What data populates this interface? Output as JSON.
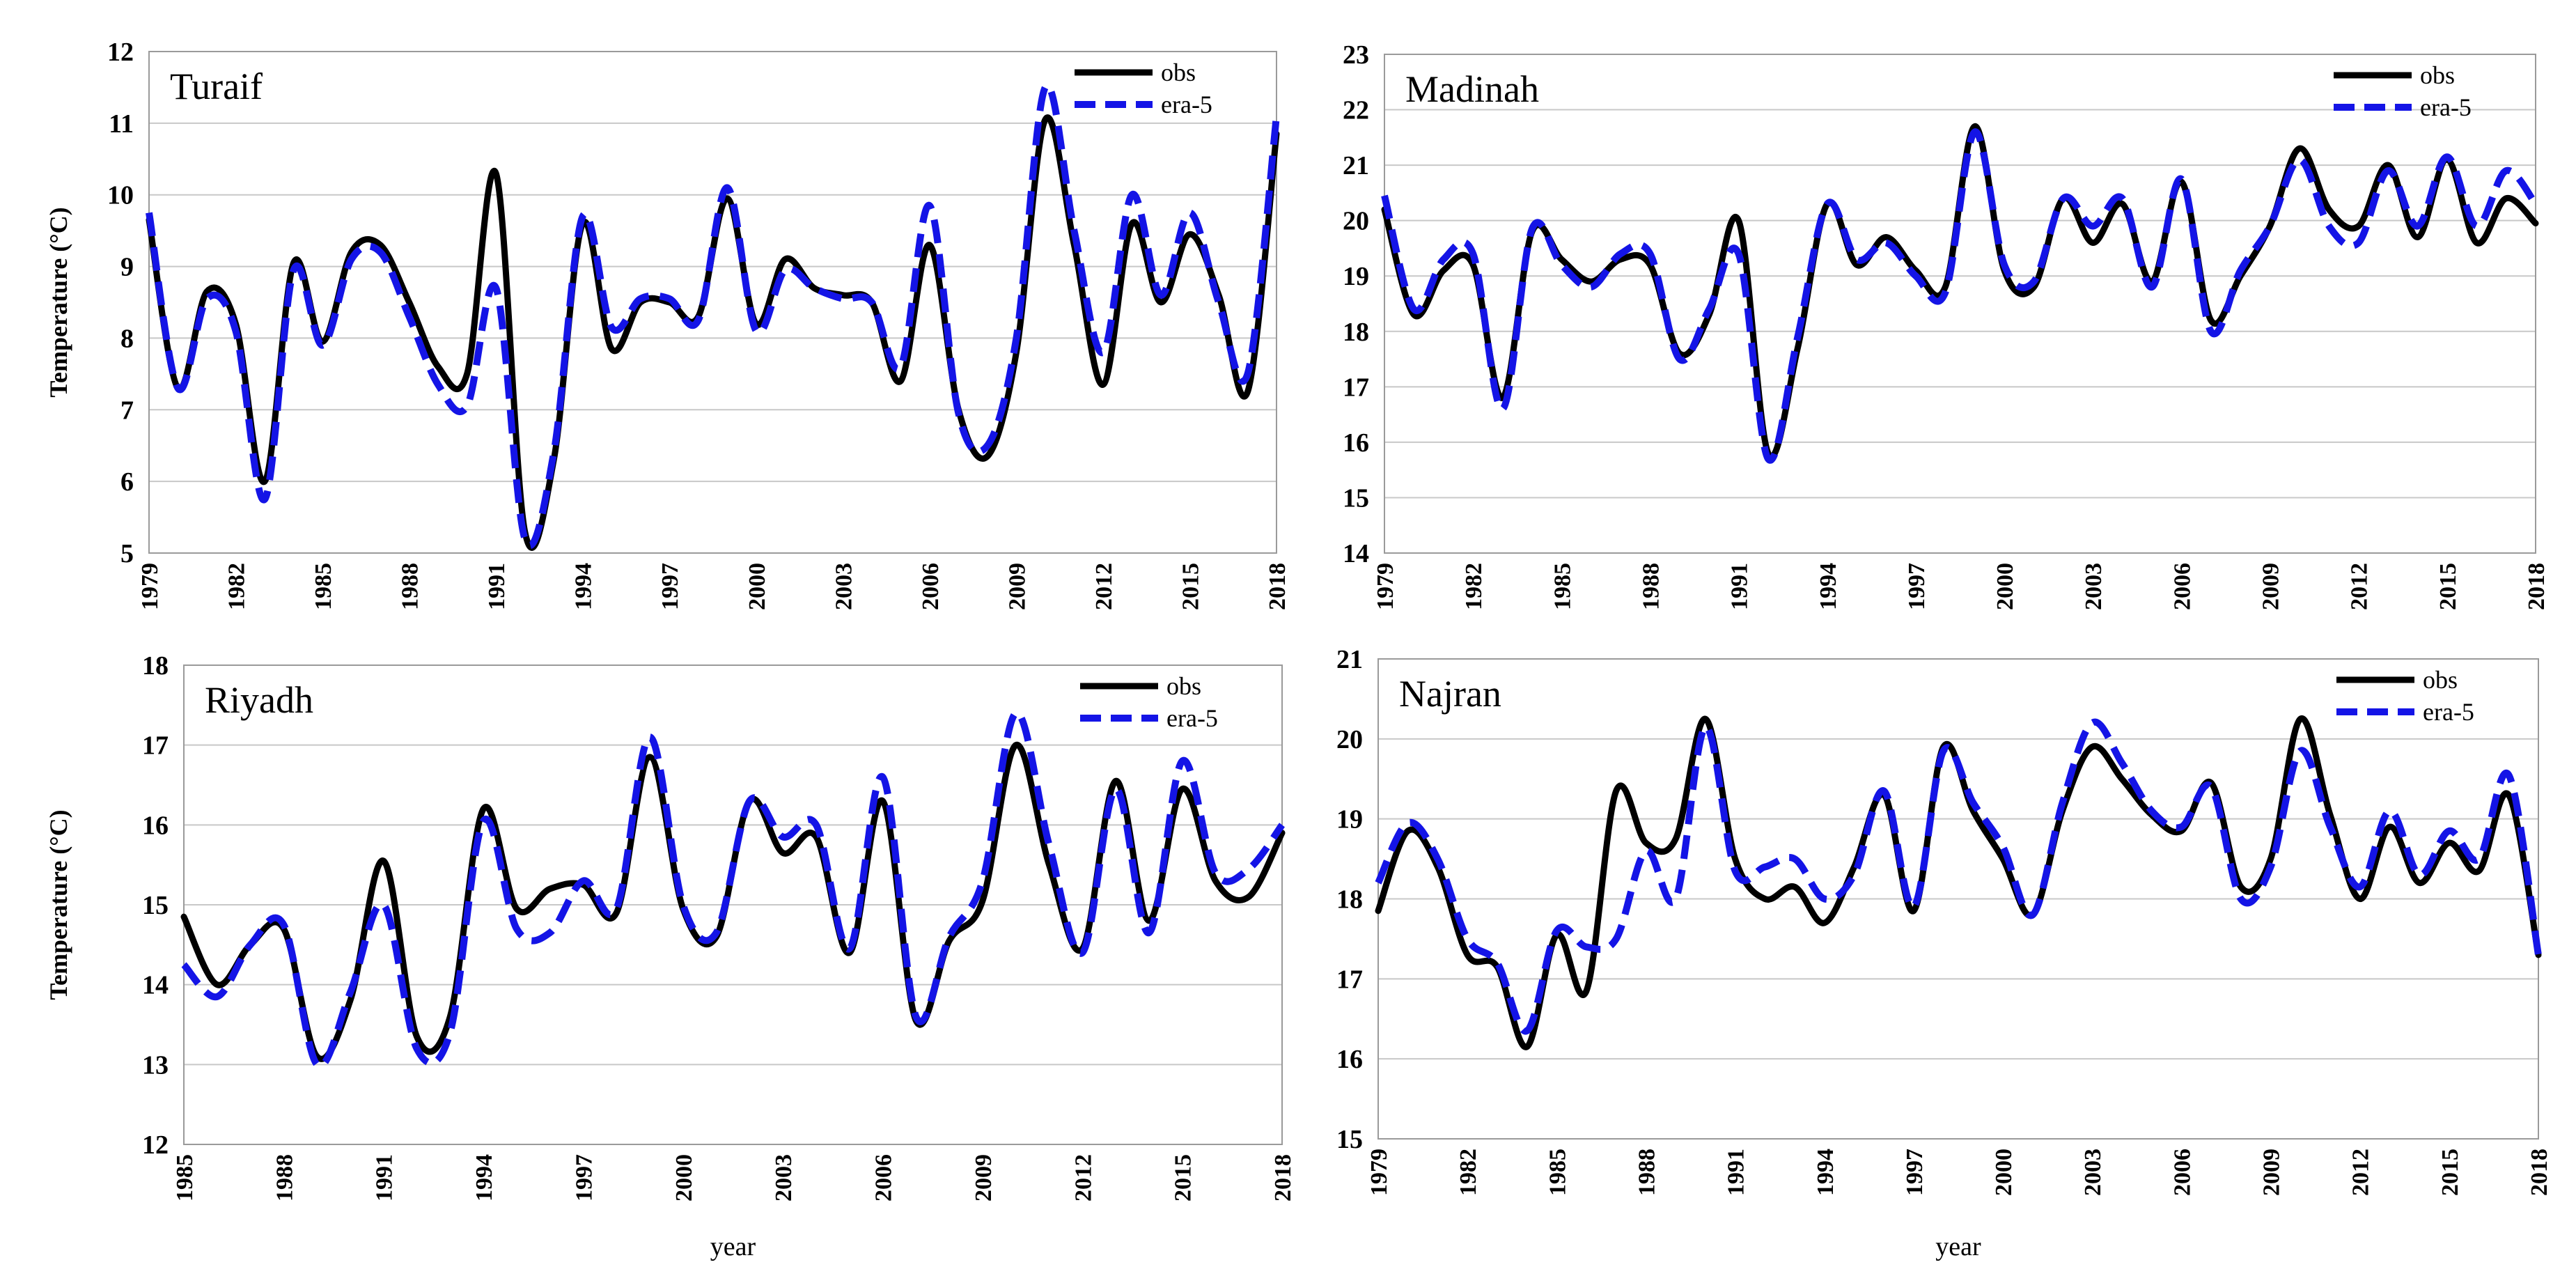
{
  "chart_data": [
    {
      "type": "line",
      "title": "Turaif",
      "xlabel": "",
      "ylabel": "Temperature (°C)",
      "ylim": [
        5,
        12
      ],
      "yticks": [
        5,
        6,
        7,
        8,
        9,
        10,
        11,
        12
      ],
      "xlim": [
        1979,
        2018
      ],
      "xticks": [
        "1979",
        "1982",
        "1985",
        "1988",
        "1991",
        "1994",
        "1997",
        "2000",
        "2003",
        "2006",
        "2009",
        "2012",
        "2015",
        "2018"
      ],
      "legend": [
        "obs",
        "era-5"
      ],
      "legend_position": "top-right",
      "x": [
        1979,
        1980,
        1981,
        1982,
        1983,
        1984,
        1985,
        1986,
        1987,
        1988,
        1989,
        1990,
        1991,
        1992,
        1993,
        1994,
        1995,
        1996,
        1997,
        1998,
        1999,
        2000,
        2001,
        2002,
        2003,
        2004,
        2005,
        2006,
        2007,
        2008,
        2009,
        2010,
        2011,
        2012,
        2013,
        2014,
        2015,
        2016,
        2017,
        2018
      ],
      "series": [
        {
          "name": "obs",
          "color": "#000000",
          "dashed": false,
          "values": [
            9.65,
            7.3,
            8.65,
            8.2,
            6.0,
            9.05,
            7.95,
            9.2,
            9.3,
            8.5,
            7.6,
            7.5,
            10.3,
            5.3,
            6.3,
            9.6,
            7.85,
            8.5,
            8.5,
            8.3,
            9.95,
            8.2,
            9.1,
            8.7,
            8.6,
            8.5,
            7.4,
            9.3,
            7.0,
            6.35,
            7.8,
            11.05,
            9.3,
            7.35,
            9.6,
            8.5,
            9.45,
            8.6,
            7.25,
            10.85
          ]
        },
        {
          "name": "era-5",
          "color": "#1414e6",
          "dashed": true,
          "values": [
            9.75,
            7.3,
            8.55,
            8.1,
            5.75,
            8.95,
            7.9,
            9.1,
            9.2,
            8.3,
            7.35,
            7.05,
            8.7,
            5.2,
            6.4,
            9.7,
            8.15,
            8.55,
            8.55,
            8.25,
            10.1,
            8.1,
            8.95,
            8.7,
            8.55,
            8.5,
            7.6,
            9.85,
            6.95,
            6.5,
            8.0,
            11.5,
            9.5,
            7.8,
            10.0,
            8.6,
            9.75,
            8.5,
            7.5,
            11.1
          ]
        }
      ]
    },
    {
      "type": "line",
      "title": "Madinah",
      "xlabel": "",
      "ylabel": "",
      "ylim": [
        14,
        23
      ],
      "yticks": [
        14,
        15,
        16,
        17,
        18,
        19,
        20,
        21,
        22,
        23
      ],
      "xlim": [
        1979,
        2018
      ],
      "xticks": [
        "1979",
        "1982",
        "1985",
        "1988",
        "1991",
        "1994",
        "1997",
        "2000",
        "2003",
        "2006",
        "2009",
        "2012",
        "2015",
        "2018"
      ],
      "legend": [
        "obs",
        "era-5"
      ],
      "legend_position": "top-right",
      "x": [
        1979,
        1980,
        1981,
        1982,
        1983,
        1984,
        1985,
        1986,
        1987,
        1988,
        1989,
        1990,
        1991,
        1992,
        1993,
        1994,
        1995,
        1996,
        1997,
        1998,
        1999,
        2000,
        2001,
        2002,
        2003,
        2004,
        2005,
        2006,
        2007,
        2008,
        2009,
        2010,
        2011,
        2012,
        2013,
        2014,
        2015,
        2016,
        2017,
        2018
      ],
      "series": [
        {
          "name": "obs",
          "color": "#000000",
          "dashed": false,
          "values": [
            20.2,
            18.3,
            19.1,
            19.2,
            16.8,
            19.8,
            19.3,
            18.9,
            19.3,
            19.2,
            17.6,
            18.3,
            20.0,
            15.8,
            17.7,
            20.3,
            19.2,
            19.7,
            19.1,
            18.8,
            21.7,
            19.1,
            18.8,
            20.4,
            19.6,
            20.3,
            18.9,
            20.7,
            18.2,
            19.0,
            19.9,
            21.3,
            20.2,
            19.9,
            21.0,
            19.7,
            21.1,
            19.6,
            20.4,
            19.95
          ]
        },
        {
          "name": "era-5",
          "color": "#1414e6",
          "dashed": true,
          "values": [
            20.45,
            18.4,
            19.3,
            19.4,
            16.6,
            19.85,
            19.2,
            18.8,
            19.4,
            19.4,
            17.5,
            18.4,
            19.4,
            15.7,
            17.9,
            20.3,
            19.3,
            19.6,
            19.0,
            18.7,
            21.6,
            19.2,
            18.9,
            20.4,
            19.9,
            20.4,
            18.8,
            20.75,
            18.0,
            19.1,
            19.9,
            21.1,
            19.9,
            19.6,
            20.9,
            19.9,
            21.15,
            19.9,
            20.9,
            20.3
          ]
        }
      ]
    },
    {
      "type": "line",
      "title": "Riyadh",
      "xlabel": "year",
      "ylabel": "Temperature (°C)",
      "ylim": [
        12,
        18
      ],
      "yticks": [
        12,
        13,
        14,
        15,
        16,
        17,
        18
      ],
      "xlim": [
        1985,
        2018
      ],
      "xticks": [
        "1985",
        "1988",
        "1991",
        "1994",
        "1997",
        "2000",
        "2003",
        "2006",
        "2009",
        "2012",
        "2015",
        "2018"
      ],
      "legend": [
        "obs",
        "era-5"
      ],
      "legend_position": "top-right",
      "x": [
        1985,
        1986,
        1987,
        1988,
        1989,
        1990,
        1991,
        1992,
        1993,
        1994,
        1995,
        1996,
        1997,
        1998,
        1999,
        2000,
        2001,
        2002,
        2003,
        2004,
        2005,
        2006,
        2007,
        2008,
        2009,
        2010,
        2011,
        2012,
        2013,
        2014,
        2015,
        2016,
        2017,
        2018
      ],
      "series": [
        {
          "name": "obs",
          "color": "#000000",
          "dashed": false,
          "values": [
            14.85,
            14.0,
            14.5,
            14.7,
            13.1,
            13.8,
            15.55,
            13.35,
            13.6,
            16.2,
            14.95,
            15.2,
            15.25,
            14.9,
            16.85,
            14.95,
            14.6,
            16.3,
            15.65,
            15.85,
            14.4,
            16.3,
            13.55,
            14.55,
            15.05,
            17.0,
            15.5,
            14.45,
            16.55,
            14.8,
            16.45,
            15.3,
            15.1,
            15.9
          ]
        },
        {
          "name": "era-5",
          "color": "#1414e6",
          "dashed": true,
          "values": [
            14.25,
            13.85,
            14.5,
            14.75,
            13.0,
            13.9,
            15.0,
            13.2,
            13.4,
            16.05,
            14.7,
            14.65,
            15.3,
            14.95,
            17.1,
            15.0,
            14.65,
            16.3,
            15.85,
            16.0,
            14.45,
            16.6,
            13.6,
            14.6,
            15.3,
            17.4,
            15.75,
            14.4,
            16.45,
            14.65,
            16.8,
            15.4,
            15.45,
            16.0
          ]
        }
      ]
    },
    {
      "type": "line",
      "title": "Najran",
      "xlabel": "year",
      "ylabel": "",
      "ylim": [
        15,
        21
      ],
      "yticks": [
        15,
        16,
        17,
        18,
        19,
        20,
        21
      ],
      "xlim": [
        1979,
        2018
      ],
      "xticks": [
        "1979",
        "1982",
        "1985",
        "1988",
        "1991",
        "1994",
        "1997",
        "2000",
        "2003",
        "2006",
        "2009",
        "2012",
        "2015",
        "2018"
      ],
      "legend": [
        "obs",
        "era-5"
      ],
      "legend_position": "top-right",
      "x": [
        1979,
        1980,
        1981,
        1982,
        1983,
        1984,
        1985,
        1986,
        1987,
        1988,
        1989,
        1990,
        1991,
        1992,
        1993,
        1994,
        1995,
        1996,
        1997,
        1998,
        1999,
        2000,
        2001,
        2002,
        2003,
        2004,
        2005,
        2006,
        2007,
        2008,
        2009,
        2010,
        2011,
        2012,
        2013,
        2014,
        2015,
        2016,
        2017,
        2018
      ],
      "series": [
        {
          "name": "obs",
          "color": "#000000",
          "dashed": false,
          "values": [
            17.85,
            18.85,
            18.4,
            17.3,
            17.15,
            16.15,
            17.55,
            16.85,
            19.35,
            18.7,
            18.75,
            20.25,
            18.5,
            18.0,
            18.15,
            17.7,
            18.4,
            19.3,
            17.85,
            19.9,
            19.1,
            18.5,
            17.8,
            19.1,
            19.9,
            19.5,
            19.05,
            18.85,
            19.45,
            18.15,
            18.5,
            20.25,
            19.05,
            18.0,
            18.9,
            18.2,
            18.7,
            18.35,
            19.3,
            17.3
          ]
        },
        {
          "name": "era-5",
          "color": "#1414e6",
          "dashed": true,
          "values": [
            18.2,
            18.95,
            18.5,
            17.5,
            17.2,
            16.35,
            17.6,
            17.4,
            17.5,
            18.6,
            18.0,
            20.15,
            18.35,
            18.4,
            18.5,
            18.0,
            18.3,
            19.35,
            17.9,
            19.85,
            19.2,
            18.65,
            17.8,
            19.2,
            20.2,
            19.7,
            19.1,
            18.9,
            19.4,
            18.0,
            18.4,
            19.85,
            18.9,
            18.15,
            19.1,
            18.3,
            18.85,
            18.5,
            19.55,
            17.3
          ]
        }
      ]
    }
  ]
}
